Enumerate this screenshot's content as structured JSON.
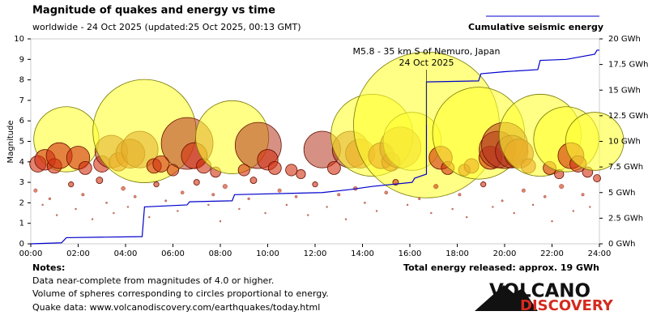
{
  "chart_data": {
    "type": "scatter",
    "title": "Magnitude of quakes and energy vs time",
    "subtitle": "worldwide - 24 Oct 2025 (updated:25 Oct 2025, 00:13 GMT)",
    "ylabel": "Magnitude",
    "xlim": [
      0,
      24
    ],
    "xticks": [
      {
        "value": 0,
        "label": "00:00"
      },
      {
        "value": 2,
        "label": "02:00"
      },
      {
        "value": 4,
        "label": "04:00"
      },
      {
        "value": 6,
        "label": "06:00"
      },
      {
        "value": 8,
        "label": "08:00"
      },
      {
        "value": 10,
        "label": "10:00"
      },
      {
        "value": 12,
        "label": "12:00"
      },
      {
        "value": 14,
        "label": "14:00"
      },
      {
        "value": 16,
        "label": "16:00"
      },
      {
        "value": 18,
        "label": "18:00"
      },
      {
        "value": 20,
        "label": "20:00"
      },
      {
        "value": 22,
        "label": "22:00"
      },
      {
        "value": 24,
        "label": "24:00"
      }
    ],
    "ylim": [
      0,
      10
    ],
    "yticks": [
      0,
      1,
      2,
      3,
      4,
      5,
      6,
      7,
      8,
      9,
      10
    ],
    "y2lim": [
      0,
      20
    ],
    "y2ticks": [
      {
        "value": 0,
        "label": "0 GWh"
      },
      {
        "value": 2.5,
        "label": "2.5 GWh"
      },
      {
        "value": 5,
        "label": "5 GWh"
      },
      {
        "value": 7.5,
        "label": "7.5 GWh"
      },
      {
        "value": 10,
        "label": "10 GWh"
      },
      {
        "value": 12.5,
        "label": "12.5 GWh"
      },
      {
        "value": 15,
        "label": "15 GWh"
      },
      {
        "value": 17.5,
        "label": "17.5 GWh"
      },
      {
        "value": 20,
        "label": "20 GWh"
      }
    ],
    "series": [
      {
        "type": "scatter",
        "color": "#d03010",
        "x": [
          1.5,
          0.3,
          0.6,
          1.0,
          1.2,
          2.0,
          2.3,
          3.0,
          3.4,
          3.7,
          4.2,
          4.6,
          4.8,
          5.2,
          5.5,
          6.0,
          6.6,
          6.9,
          7.3,
          7.8,
          8.5,
          9.0,
          9.6,
          10.0,
          10.3,
          11.0,
          11.4,
          12.3,
          12.8,
          13.5,
          13.9,
          14.4,
          14.8,
          15.2,
          15.6,
          16.1,
          16.7,
          17.3,
          17.6,
          18.3,
          18.6,
          18.9,
          19.4,
          19.7,
          20.0,
          20.3,
          20.6,
          21.0,
          21.5,
          21.9,
          22.3,
          22.6,
          22.8,
          23.1,
          23.5,
          23.8,
          23.9,
          0.2,
          0.5,
          0.8,
          1.1,
          1.7,
          1.9,
          2.2,
          2.6,
          2.9,
          3.2,
          3.5,
          3.9,
          4.1,
          4.4,
          5.0,
          5.3,
          5.7,
          6.2,
          6.4,
          7.0,
          7.5,
          7.7,
          8.0,
          8.2,
          8.8,
          9.2,
          9.4,
          9.9,
          10.5,
          10.8,
          11.2,
          11.7,
          12.0,
          12.5,
          13.0,
          13.3,
          13.7,
          14.1,
          14.6,
          15.0,
          15.4,
          15.9,
          16.4,
          16.9,
          17.1,
          17.8,
          18.1,
          18.4,
          19.1,
          19.5,
          19.9,
          20.4,
          20.8,
          21.2,
          21.7,
          22.0,
          22.4,
          22.9,
          23.3,
          23.6
        ],
        "values": [
          5.1,
          3.9,
          4.1,
          3.8,
          4.3,
          4.2,
          3.7,
          3.9,
          4.5,
          4.0,
          4.4,
          4.6,
          5.5,
          3.8,
          3.9,
          3.6,
          4.9,
          4.3,
          3.8,
          3.5,
          5.2,
          3.6,
          4.8,
          4.1,
          3.7,
          3.6,
          3.4,
          4.6,
          3.7,
          4.6,
          4.4,
          5.3,
          4.3,
          4.0,
          4.7,
          5.0,
          5.8,
          4.2,
          3.7,
          3.6,
          3.8,
          5.4,
          4.2,
          4.6,
          4.8,
          4.5,
          4.4,
          3.8,
          5.3,
          3.7,
          3.4,
          5.1,
          4.3,
          3.9,
          3.5,
          5.0,
          3.2,
          2.6,
          1.9,
          2.2,
          1.4,
          2.9,
          1.7,
          2.4,
          1.2,
          3.1,
          2.0,
          1.5,
          2.7,
          1.8,
          2.3,
          1.3,
          2.9,
          2.1,
          1.6,
          2.5,
          3.0,
          1.9,
          2.4,
          1.1,
          2.8,
          1.7,
          2.2,
          3.1,
          1.5,
          2.6,
          1.9,
          2.3,
          1.4,
          2.9,
          1.8,
          2.4,
          1.2,
          2.7,
          2.0,
          1.6,
          2.5,
          3.0,
          1.9,
          2.2,
          1.5,
          2.8,
          1.7,
          2.4,
          1.3,
          2.9,
          1.8,
          2.1,
          1.5,
          2.6,
          1.9,
          2.3,
          1.1,
          2.8,
          1.6,
          2.4,
          1.8
        ]
      },
      {
        "type": "line",
        "name": "Cumulative seismic energy",
        "color": "#0000cc",
        "axis": "y2",
        "x": [
          0,
          1.3,
          1.5,
          4.7,
          4.8,
          6.6,
          6.7,
          8.5,
          8.6,
          12.3,
          13.5,
          14.4,
          16.1,
          16.2,
          16.7,
          16.7,
          18.9,
          19.0,
          20.0,
          21.4,
          21.5,
          22.6,
          23.8,
          23.9,
          24
        ],
        "values": [
          0,
          0.1,
          0.6,
          0.7,
          3.6,
          3.8,
          4.1,
          4.2,
          4.8,
          5.0,
          5.3,
          5.6,
          6.0,
          6.4,
          6.8,
          15.8,
          15.9,
          16.6,
          16.8,
          17.0,
          17.9,
          18.0,
          18.5,
          18.9,
          18.9
        ]
      }
    ],
    "annotation": {
      "text": "M5.8 - 35 km S of Nemuro, Japan",
      "date": "24 Oct 2025"
    },
    "notes_title": "Notes:",
    "notes": [
      "Data near-complete from magnitudes of 4.0 or higher.",
      "Volume of spheres corresponding to circles proportional to energy.",
      "Quake data: www.volcanodiscovery.com/earthquakes/today.html"
    ],
    "total": "Total energy released: approx. 19 GWh",
    "logo": [
      "VOLCANO",
      "DISCOVERY"
    ]
  }
}
